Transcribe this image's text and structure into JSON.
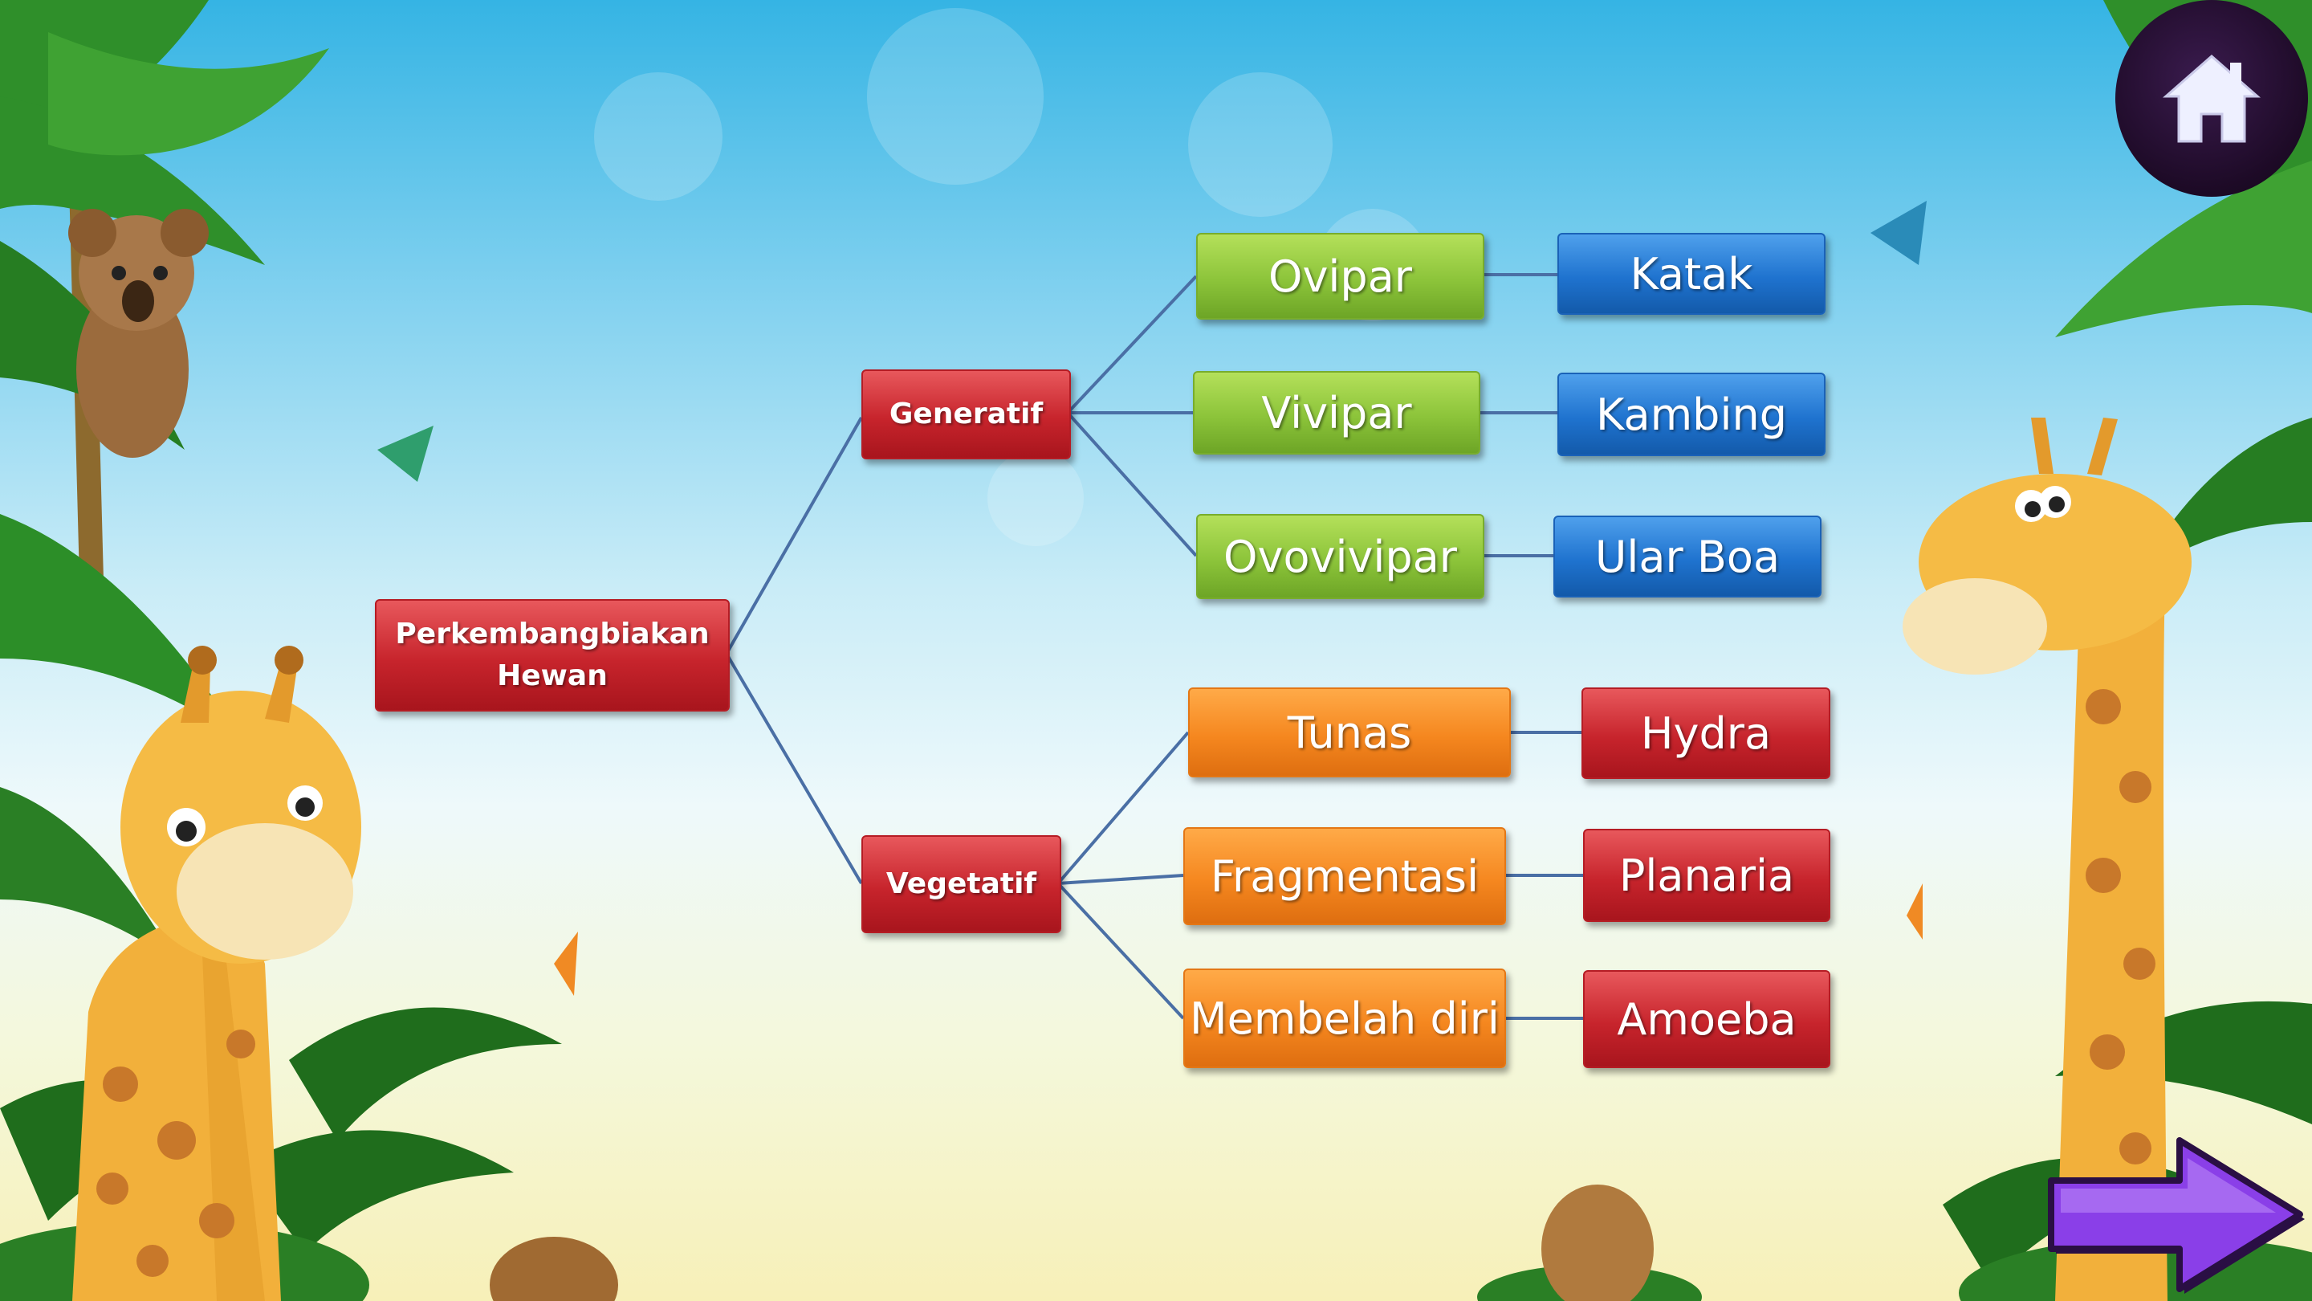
{
  "diagram": {
    "root": "Perkembangbiakan Hewan",
    "branches": {
      "generatif": {
        "label": "Generatif",
        "types": [
          {
            "label": "Ovipar",
            "example": "Katak"
          },
          {
            "label": "Vivipar",
            "example": "Kambing"
          },
          {
            "label": "Ovovivipar",
            "example": "Ular Boa"
          }
        ]
      },
      "vegetatif": {
        "label": "Vegetatif",
        "types": [
          {
            "label": "Tunas",
            "example": "Hydra"
          },
          {
            "label": "Fragmentasi",
            "example": "Planaria"
          },
          {
            "label": "Membelah diri",
            "example": "Amoeba"
          }
        ]
      }
    }
  },
  "nav": {
    "home_icon": "home-icon",
    "next_icon": "arrow-right-icon"
  },
  "colors": {
    "root": "#c7242c",
    "generatif_types": "#8cc43a",
    "generatif_examples": "#1f73cf",
    "vegetatif_types": "#f5871f",
    "vegetatif_examples": "#c7242c",
    "home_button": "#1d0a26",
    "next_button": "#8a3fe8"
  }
}
